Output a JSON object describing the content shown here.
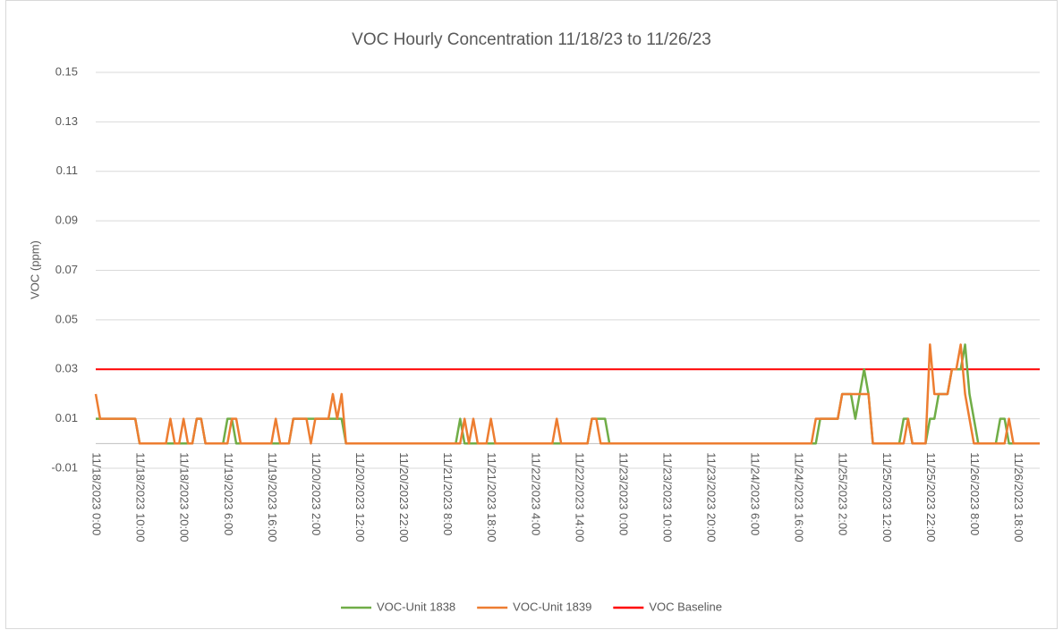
{
  "chart_data": {
    "type": "line",
    "title": "VOC Hourly Concentration 11/18/23 to 11/26/23",
    "y_label": "VOC (ppm)",
    "ylim": [
      -0.01,
      0.15
    ],
    "yticks": [
      -0.01,
      0.01,
      0.03,
      0.05,
      0.07,
      0.09,
      0.11,
      0.13,
      0.15
    ],
    "grid": true,
    "legend": "bottom",
    "categories": [
      "11/18/2023 0:00",
      null,
      null,
      null,
      null,
      null,
      null,
      null,
      null,
      null,
      "11/18/2023 10:00",
      null,
      null,
      null,
      null,
      null,
      null,
      null,
      null,
      null,
      "11/18/2023 20:00",
      null,
      null,
      null,
      null,
      null,
      null,
      null,
      null,
      null,
      "11/19/2023 6:00",
      null,
      null,
      null,
      null,
      null,
      null,
      null,
      null,
      null,
      "11/19/2023 16:00",
      null,
      null,
      null,
      null,
      null,
      null,
      null,
      null,
      null,
      "11/20/2023 2:00",
      null,
      null,
      null,
      null,
      null,
      null,
      null,
      null,
      null,
      "11/20/2023 12:00",
      null,
      null,
      null,
      null,
      null,
      null,
      null,
      null,
      null,
      "11/20/2023 22:00",
      null,
      null,
      null,
      null,
      null,
      null,
      null,
      null,
      null,
      "11/21/2023 8:00",
      null,
      null,
      null,
      null,
      null,
      null,
      null,
      null,
      null,
      "11/21/2023 18:00",
      null,
      null,
      null,
      null,
      null,
      null,
      null,
      null,
      null,
      "11/22/2023 4:00",
      null,
      null,
      null,
      null,
      null,
      null,
      null,
      null,
      null,
      "11/22/2023 14:00",
      null,
      null,
      null,
      null,
      null,
      null,
      null,
      null,
      null,
      "11/23/2023 0:00",
      null,
      null,
      null,
      null,
      null,
      null,
      null,
      null,
      null,
      "11/23/2023 10:00",
      null,
      null,
      null,
      null,
      null,
      null,
      null,
      null,
      null,
      "11/23/2023 20:00",
      null,
      null,
      null,
      null,
      null,
      null,
      null,
      null,
      null,
      "11/24/2023 6:00",
      null,
      null,
      null,
      null,
      null,
      null,
      null,
      null,
      null,
      "11/24/2023 16:00",
      null,
      null,
      null,
      null,
      null,
      null,
      null,
      null,
      null,
      "11/25/2023 2:00",
      null,
      null,
      null,
      null,
      null,
      null,
      null,
      null,
      null,
      "11/25/2023 12:00",
      null,
      null,
      null,
      null,
      null,
      null,
      null,
      null,
      null,
      "11/25/2023 22:00",
      null,
      null,
      null,
      null,
      null,
      null,
      null,
      null,
      null,
      "11/26/2023 8:00",
      null,
      null,
      null,
      null,
      null,
      null,
      null,
      null,
      null,
      "11/26/2023 18:00",
      null,
      null,
      null,
      null,
      null
    ],
    "series": [
      {
        "name": "VOC-Unit 1838",
        "color": "#70ad47",
        "values": [
          0.01,
          0.01,
          0.01,
          0.01,
          0.01,
          0.01,
          0.01,
          0.01,
          0.01,
          0.01,
          0,
          0,
          0,
          0,
          0,
          0,
          0,
          0,
          0,
          0,
          0,
          0,
          0,
          0.01,
          0.01,
          0,
          0,
          0,
          0,
          0,
          0.01,
          0.01,
          0,
          0,
          0,
          0,
          0,
          0,
          0,
          0,
          0,
          0,
          0,
          0,
          0,
          0.01,
          0.01,
          0.01,
          0.01,
          0.01,
          0.01,
          0.01,
          0.01,
          0.01,
          0.01,
          0.01,
          0.01,
          0,
          0,
          0,
          0,
          0,
          0,
          0,
          0,
          0,
          0,
          0,
          0,
          0,
          0,
          0,
          0,
          0,
          0,
          0,
          0,
          0,
          0,
          0,
          0,
          0,
          0,
          0.01,
          0,
          0,
          0,
          0,
          0,
          0,
          0,
          0,
          0,
          0,
          0,
          0,
          0,
          0,
          0,
          0,
          0,
          0,
          0,
          0,
          0,
          0,
          0,
          0,
          0,
          0,
          0,
          0,
          0,
          0.01,
          0.01,
          0.01,
          0.01,
          0,
          0,
          0,
          0,
          0,
          0,
          0,
          0,
          0,
          0,
          0,
          0,
          0,
          0,
          0,
          0,
          0,
          0,
          0,
          0,
          0,
          0,
          0,
          0,
          0,
          0,
          0,
          0,
          0,
          0,
          0,
          0,
          0,
          0,
          0,
          0,
          0,
          0,
          0,
          0,
          0,
          0,
          0,
          0,
          0,
          0,
          0,
          0,
          0.01,
          0.01,
          0.01,
          0.01,
          0.01,
          0.02,
          0.02,
          0.02,
          0.01,
          0.02,
          0.03,
          0.02,
          0,
          0,
          0,
          0,
          0,
          0,
          0,
          0.01,
          0.01,
          0,
          0,
          0,
          0,
          0.01,
          0.01,
          0.02,
          0.02,
          0.02,
          0.03,
          0.03,
          0.03,
          0.04,
          0.02,
          0.01,
          0,
          0,
          0,
          0,
          0,
          0.01,
          0.01,
          0,
          0,
          0,
          0,
          0,
          0,
          0,
          0
        ]
      },
      {
        "name": "VOC-Unit 1839",
        "color": "#ed7d31",
        "values": [
          0.02,
          0.01,
          0.01,
          0.01,
          0.01,
          0.01,
          0.01,
          0.01,
          0.01,
          0.01,
          0,
          0,
          0,
          0,
          0,
          0,
          0,
          0.01,
          0,
          0,
          0.01,
          0,
          0,
          0.01,
          0.01,
          0,
          0,
          0,
          0,
          0,
          0,
          0.01,
          0.01,
          0,
          0,
          0,
          0,
          0,
          0,
          0,
          0,
          0.01,
          0,
          0,
          0,
          0.01,
          0.01,
          0.01,
          0.01,
          0,
          0.01,
          0.01,
          0.01,
          0.01,
          0.02,
          0.01,
          0.02,
          0,
          0,
          0,
          0,
          0,
          0,
          0,
          0,
          0,
          0,
          0,
          0,
          0,
          0,
          0,
          0,
          0,
          0,
          0,
          0,
          0,
          0,
          0,
          0,
          0,
          0,
          0,
          0.01,
          0,
          0.01,
          0,
          0,
          0,
          0.01,
          0,
          0,
          0,
          0,
          0,
          0,
          0,
          0,
          0,
          0,
          0,
          0,
          0,
          0,
          0.01,
          0,
          0,
          0,
          0,
          0,
          0,
          0,
          0.01,
          0.01,
          0,
          0,
          0,
          0,
          0,
          0,
          0,
          0,
          0,
          0,
          0,
          0,
          0,
          0,
          0,
          0,
          0,
          0,
          0,
          0,
          0,
          0,
          0,
          0,
          0,
          0,
          0,
          0,
          0,
          0,
          0,
          0,
          0,
          0,
          0,
          0,
          0,
          0,
          0,
          0,
          0,
          0,
          0,
          0,
          0,
          0,
          0,
          0,
          0,
          0.01,
          0.01,
          0.01,
          0.01,
          0.01,
          0.01,
          0.02,
          0.02,
          0.02,
          0.02,
          0.02,
          0.02,
          0.02,
          0,
          0,
          0,
          0,
          0,
          0,
          0,
          0,
          0.01,
          0,
          0,
          0,
          0,
          0.04,
          0.02,
          0.02,
          0.02,
          0.02,
          0.03,
          0.03,
          0.04,
          0.02,
          0.01,
          0,
          0,
          0,
          0,
          0,
          0,
          0,
          0,
          0.01,
          0,
          0,
          0,
          0,
          0,
          0,
          0
        ]
      }
    ],
    "reference_lines": [
      {
        "name": "VOC Baseline",
        "color": "#ff0000",
        "value": 0.03
      }
    ]
  }
}
